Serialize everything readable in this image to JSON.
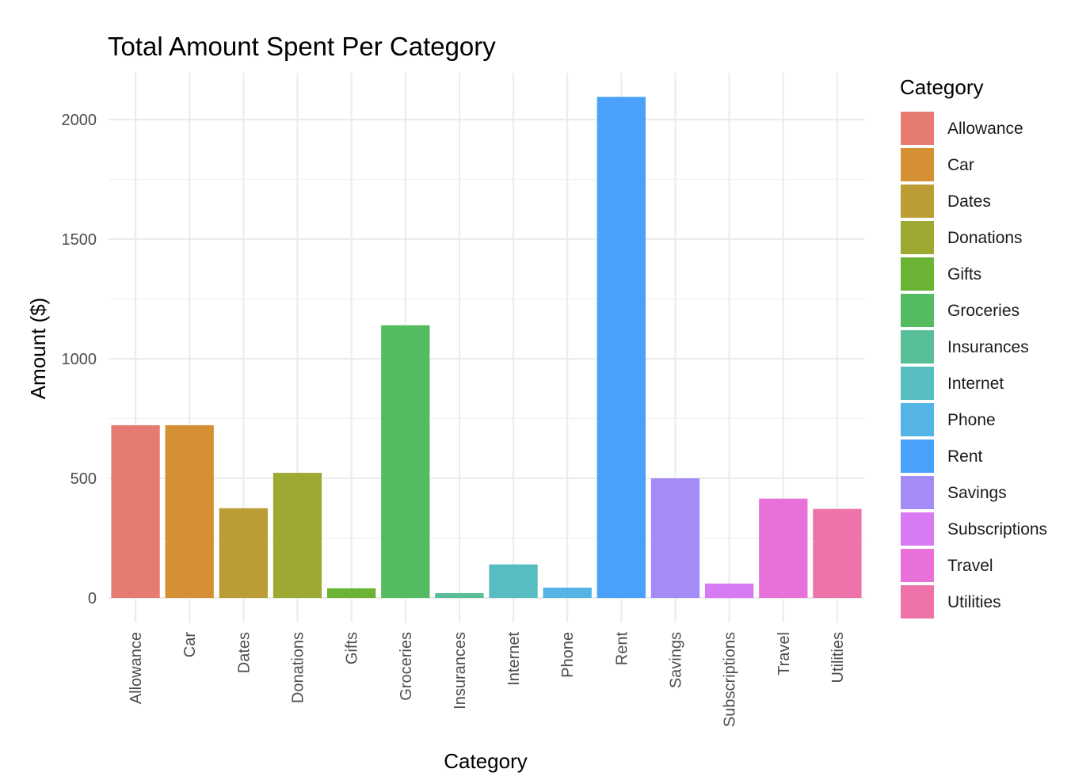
{
  "chart_data": {
    "type": "bar",
    "title": "Total Amount Spent Per Category",
    "xlabel": "Category",
    "ylabel": "Amount ($)",
    "categories": [
      "Allowance",
      "Car",
      "Dates",
      "Donations",
      "Gifts",
      "Groceries",
      "Insurances",
      "Internet",
      "Phone",
      "Rent",
      "Savings",
      "Subscriptions",
      "Travel",
      "Utilities"
    ],
    "values": [
      722,
      722,
      375,
      523,
      40,
      1140,
      20,
      140,
      43,
      2095,
      500,
      60,
      415,
      372
    ],
    "colors": [
      "#E67B72",
      "#D59033",
      "#BC9C35",
      "#9EA933",
      "#6AB335",
      "#55BB61",
      "#57BE97",
      "#58BDC1",
      "#54B4E5",
      "#4AA1F9",
      "#A48BF6",
      "#D77AF3",
      "#E770D9",
      "#EE73AB"
    ],
    "yticks": [
      0,
      500,
      1000,
      1500,
      2000
    ],
    "ylim": [
      -100,
      2200
    ],
    "grid": true,
    "legend": {
      "title": "Category",
      "position": "right"
    }
  }
}
